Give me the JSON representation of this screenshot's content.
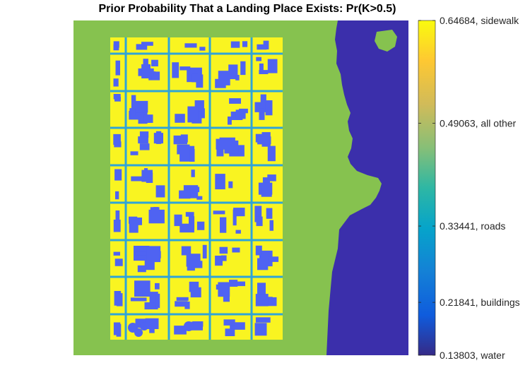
{
  "chart_data": {
    "type": "heatmap",
    "title": "Prior Probability That a Landing Place Exists: Pr(K>0.5)",
    "xlabel": "",
    "ylabel": "",
    "colormap": "parula",
    "clim": [
      0.13803,
      0.64684
    ],
    "axes_visible": false,
    "colorbar": {
      "position": "right",
      "ticks": [
        {
          "value": 0.64684,
          "label": "0.64684, sidewalk"
        },
        {
          "value": 0.49063,
          "label": "0.49063, all other"
        },
        {
          "value": 0.33441,
          "label": "0.33441, roads"
        },
        {
          "value": 0.21841,
          "label": "0.21841, buildings"
        },
        {
          "value": 0.13803,
          "label": "0.13803, water"
        }
      ]
    },
    "classes": [
      {
        "name": "sidewalk",
        "value": 0.64684,
        "color": "#f9f421"
      },
      {
        "name": "all other",
        "value": 0.49063,
        "color": "#86c24f"
      },
      {
        "name": "roads",
        "value": 0.33441,
        "color": "#2fa4d8"
      },
      {
        "name": "buildings",
        "value": 0.21841,
        "color": "#4f63f2"
      },
      {
        "name": "water",
        "value": 0.13803,
        "color": "#3b2fab"
      }
    ]
  }
}
